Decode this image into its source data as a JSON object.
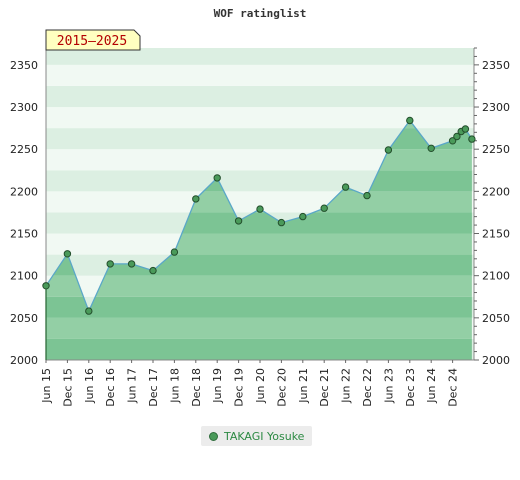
{
  "chart_data": {
    "type": "area",
    "title": "WOF ratinglist",
    "period_label": "2015–2025",
    "x_tick_labels": [
      "Jun 15",
      "Dec 15",
      "Jun 16",
      "Dec 16",
      "Jun 17",
      "Dec 17",
      "Jun 18",
      "Dec 18",
      "Jun 19",
      "Dec 19",
      "Jun 20",
      "Dec 20",
      "Jun 21",
      "Dec 21",
      "Jun 22",
      "Dec 22",
      "Jun 23",
      "Dec 23",
      "Jun 24",
      "Dec 24"
    ],
    "y_ticks": [
      2000,
      2050,
      2100,
      2150,
      2200,
      2250,
      2300,
      2350
    ],
    "ylim": [
      2000,
      2370
    ],
    "grid": true,
    "legend_position": "bottom",
    "series": [
      {
        "name": "TAKAGI Yosuke",
        "color": "#4a9a5a",
        "x": [
          0,
          1,
          2,
          3,
          4,
          5,
          6,
          7,
          8,
          9,
          10,
          11,
          12,
          13,
          14,
          15,
          16,
          17,
          18,
          19,
          19.2,
          19.4,
          19.6,
          19.9
        ],
        "values": [
          2088,
          2126,
          2058,
          2114,
          2114,
          2106,
          2128,
          2191,
          2216,
          2165,
          2179,
          2163,
          2170,
          2180,
          2205,
          2195,
          2249,
          2284,
          2251,
          2260,
          2265,
          2271,
          2274,
          2262
        ]
      }
    ]
  }
}
